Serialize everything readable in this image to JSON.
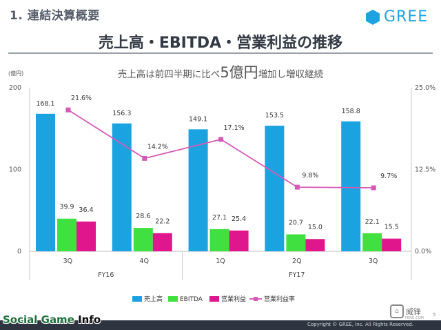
{
  "header": {
    "section_title": "1. 連結決算概要",
    "logo_text": "GREE",
    "main_title": "売上高・EBITDA・営業利益の推移",
    "subtitle_pre": "売上高は前四半期に比べ",
    "subtitle_big": "5億円",
    "subtitle_post": "増加し増収継続"
  },
  "chart_data": {
    "type": "bar",
    "title": "売上高・EBITDA・営業利益の推移",
    "ylabel": "(億円)",
    "ylim": [
      0,
      200
    ],
    "y_ticks": [
      "0",
      "100",
      "200"
    ],
    "y2lim": [
      0,
      25
    ],
    "y2_ticks": [
      "0.0%",
      "12.5%",
      "25.0%"
    ],
    "categories": [
      "3Q",
      "4Q",
      "1Q",
      "2Q",
      "3Q"
    ],
    "groups": [
      {
        "label": "FY16",
        "count": 2
      },
      {
        "label": "FY17",
        "count": 3
      }
    ],
    "series": [
      {
        "name": "売上高",
        "color": "#1aa3e0",
        "values": [
          168.1,
          156.3,
          149.1,
          153.5,
          158.8
        ],
        "labels": [
          "168.1",
          "156.3",
          "149.1",
          "153.5",
          "158.8"
        ]
      },
      {
        "name": "EBITDA",
        "color": "#3fe03f",
        "values": [
          39.9,
          28.6,
          27.1,
          20.7,
          22.1
        ],
        "labels": [
          "39.9",
          "28.6",
          "27.1",
          "20.7",
          "22.1"
        ]
      },
      {
        "name": "営業利益",
        "color": "#e0168c",
        "values": [
          36.4,
          22.2,
          25.4,
          15.0,
          15.5
        ],
        "labels": [
          "36.4",
          "22.2",
          "25.4",
          "15.0",
          "15.5"
        ]
      }
    ],
    "line_series": {
      "name": "営業利益率",
      "color": "#d65ab5",
      "axis": "right",
      "values": [
        21.6,
        14.2,
        17.1,
        9.8,
        9.7
      ],
      "labels": [
        "21.6%",
        "14.2%",
        "17.1%",
        "9.8%",
        "9.7%"
      ]
    },
    "legend": [
      "売上高",
      "EBITDA",
      "営業利益",
      "営業利益率"
    ]
  },
  "footer": {
    "watermark_a": "Social Game ",
    "watermark_b": "Info",
    "copyright": "Copyright © GREE, Inc. All Rights Reserved.",
    "right_mark": "威锋",
    "right_mark_sub": "FENG.COM",
    "page_number": "5"
  }
}
